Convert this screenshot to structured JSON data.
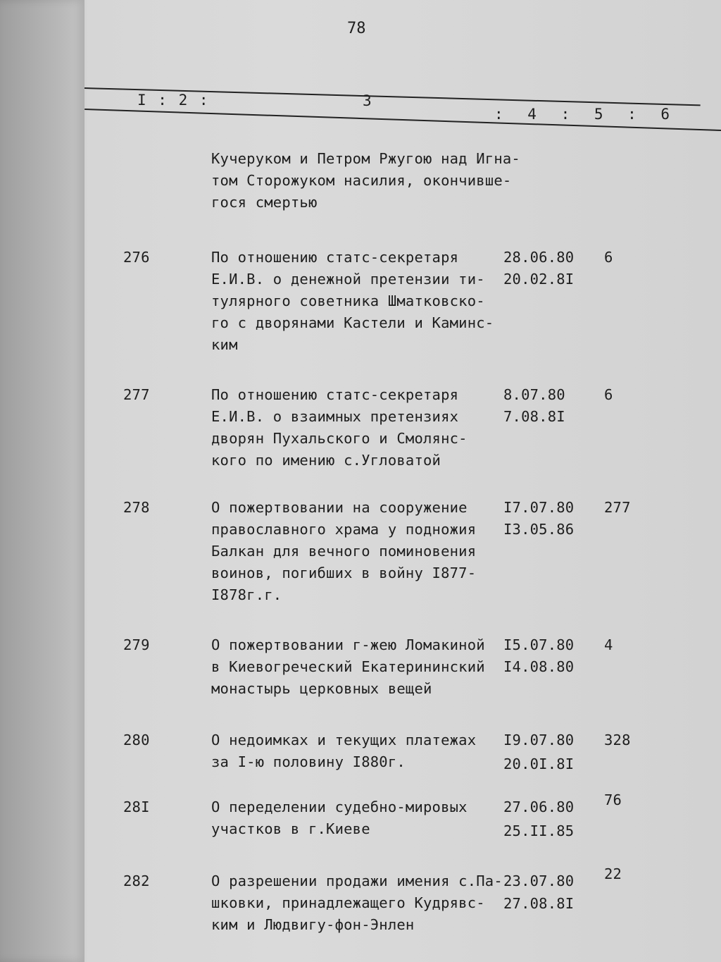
{
  "page_number": "78",
  "header": {
    "col1_2": "I : 2 :",
    "col3": "3",
    "col4_6": ": 4 : 5 : 6"
  },
  "entries": [
    {
      "number": "",
      "description": [
        "Кучеруком и Петром Ржугою над Игна-",
        "том Сторожуком насилия, окончивше-",
        "гося смертью"
      ],
      "dates": [],
      "col6": ""
    },
    {
      "number": "276",
      "description": [
        "По отношению статс-секретаря",
        "Е.И.В. о денежной претензии ти-",
        "тулярного советника Шматковско-",
        "го с дворянами Кастели и Каминс-",
        "ким"
      ],
      "dates": [
        "28.06.80",
        "20.02.8I"
      ],
      "col6": "6"
    },
    {
      "number": "277",
      "description": [
        "По отношению статс-секретаря",
        "Е.И.В. о взаимных претензиях",
        "дворян Пухальского и Смолянс-",
        "кого по имению с.Угловатой"
      ],
      "dates": [
        "8.07.80",
        "7.08.8I"
      ],
      "col6": "6"
    },
    {
      "number": "278",
      "description": [
        "О пожертвовании на сооружение",
        "православного храма у подножия",
        "Балкан для вечного поминовения",
        "воинов, погибших в войну I877-",
        "I878г.г."
      ],
      "dates": [
        "I7.07.80",
        "I3.05.86"
      ],
      "col6": "277"
    },
    {
      "number": "279",
      "description": [
        "О пожертвовании г-жею Ломакиной",
        "в Киевогреческий Екатерининский",
        "монастырь церковных вещей"
      ],
      "dates": [
        "I5.07.80",
        "I4.08.80"
      ],
      "col6": "4"
    },
    {
      "number": "280",
      "description": [
        "О недоимках и текущих платежах",
        "за I-ю половину I880г."
      ],
      "dates": [
        "I9.07.80",
        "20.0I.8I"
      ],
      "col6": "328"
    },
    {
      "number": "28I",
      "description": [
        "О переделении судебно-мировых",
        "участков в г.Киеве"
      ],
      "dates": [
        "27.06.80",
        "25.II.85"
      ],
      "col6": "76"
    },
    {
      "number": "282",
      "description": [
        "О разрешении продажи имения с.Па-",
        "шковки, принадлежащего Кудрявс-",
        "ким и Людвигу-фон-Энлен"
      ],
      "dates": [
        "23.07.80",
        "27.08.8I"
      ],
      "col6": "22"
    }
  ]
}
